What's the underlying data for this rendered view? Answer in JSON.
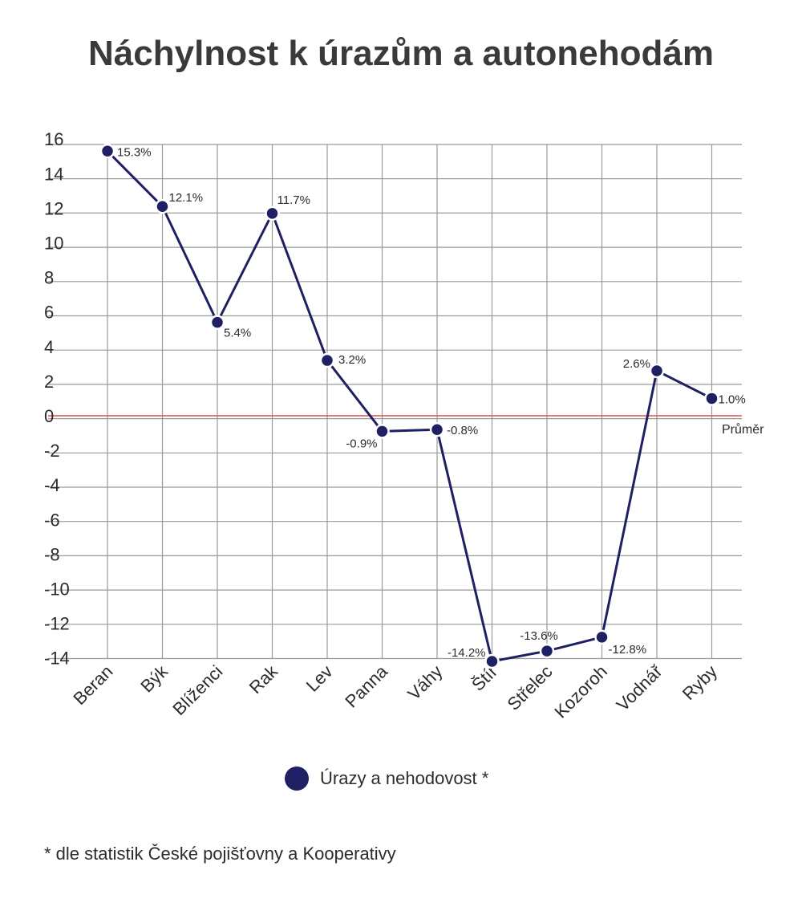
{
  "title": "Náchylnost k úrazům a autonehodám",
  "legend": {
    "label": "Úrazy a nehodovost *",
    "color": "#1f1f63"
  },
  "footnote": "* dle statistik České pojišťovny a Kooperativy",
  "chart_data": {
    "type": "line",
    "categories": [
      "Beran",
      "Býk",
      "Blíženci",
      "Rak",
      "Lev",
      "Panna",
      "Váhy",
      "Štír",
      "Střelec",
      "Kozoroh",
      "Vodnář",
      "Ryby"
    ],
    "series": [
      {
        "name": "Úrazy a nehodovost *",
        "values": [
          15.3,
          12.1,
          5.4,
          11.7,
          3.2,
          -0.9,
          -0.8,
          -14.2,
          -13.6,
          -12.8,
          2.6,
          1.0
        ],
        "labels": [
          "15.3%",
          "12.1%",
          "5.4%",
          "11.7%",
          "3.2%",
          "-0.9%",
          "-0.8%",
          "-14.2%",
          "-13.6%",
          "-12.8%",
          "2.6%",
          "1.0%"
        ],
        "color": "#1f1f63"
      }
    ],
    "y_ticks": [
      "16",
      "14",
      "12",
      "10",
      "8",
      "6",
      "4",
      "2",
      "0",
      "-2",
      "-4",
      "-6",
      "-8",
      "-10",
      "-12",
      "-14"
    ],
    "ylim": [
      -14,
      16
    ],
    "reference_line": {
      "value": 0,
      "label": "Průměr",
      "color": "#d9534f"
    },
    "grid": true,
    "legend_position": "bottom"
  }
}
